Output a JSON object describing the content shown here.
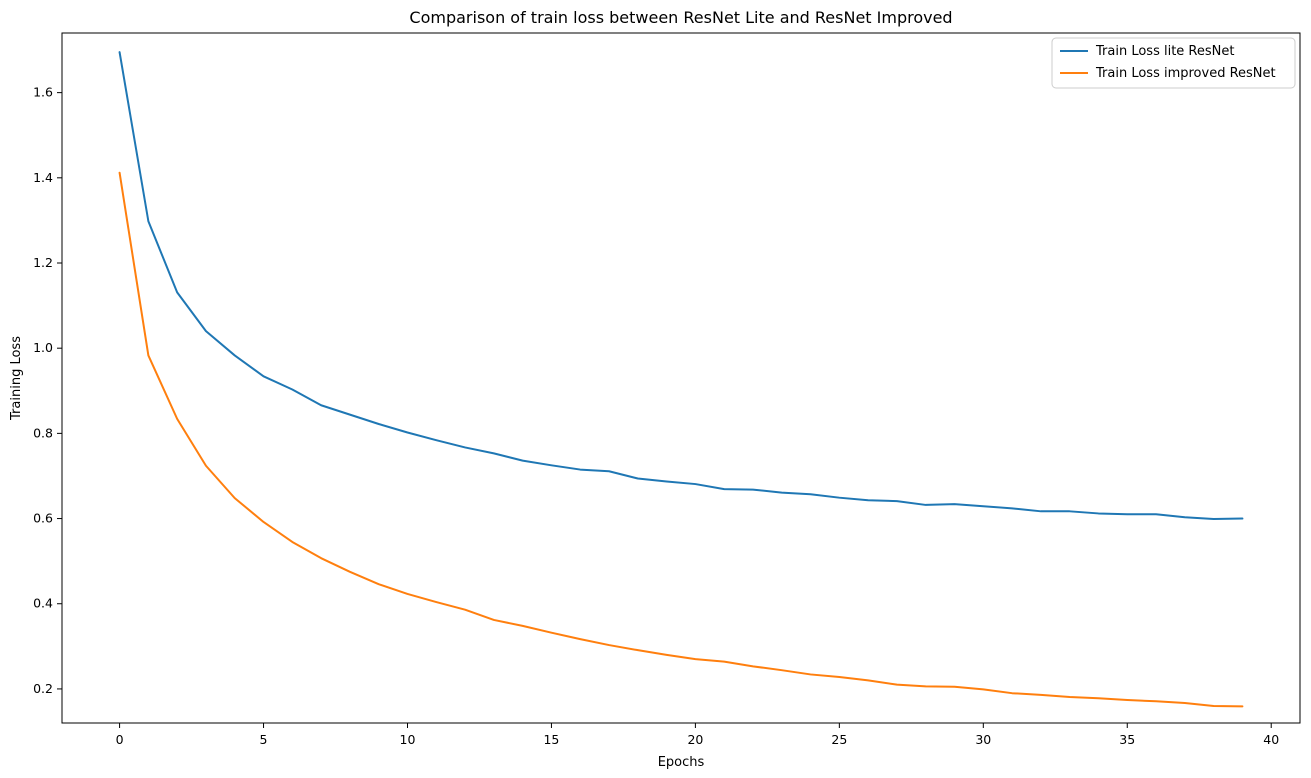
{
  "chart_data": {
    "type": "line",
    "title": "Comparison of train loss between ResNet Lite and ResNet Improved",
    "xlabel": "Epochs",
    "ylabel": "Training Loss",
    "xlim": [
      -2,
      41
    ],
    "ylim": [
      0.12,
      1.74
    ],
    "xticks": [
      0,
      5,
      10,
      15,
      20,
      25,
      30,
      35,
      40
    ],
    "yticks": [
      0.2,
      0.4,
      0.6,
      0.8,
      1.0,
      1.2,
      1.4,
      1.6
    ],
    "xtick_labels": [
      "0",
      "5",
      "10",
      "15",
      "20",
      "25",
      "30",
      "35",
      "40"
    ],
    "ytick_labels": [
      "0.2",
      "0.4",
      "0.6",
      "0.8",
      "1.0",
      "1.2",
      "1.4",
      "1.6"
    ],
    "grid": false,
    "legend_position": "top-right",
    "x": [
      0,
      1,
      2,
      3,
      4,
      5,
      6,
      7,
      8,
      9,
      10,
      11,
      12,
      13,
      14,
      15,
      16,
      17,
      18,
      19,
      20,
      21,
      22,
      23,
      24,
      25,
      26,
      27,
      28,
      29,
      30,
      31,
      32,
      33,
      34,
      35,
      36,
      37,
      38,
      39
    ],
    "series": [
      {
        "name": "Train Loss lite ResNet",
        "color": "#1f77b4",
        "values": [
          1.695,
          1.298,
          1.131,
          1.04,
          0.983,
          0.934,
          0.903,
          0.866,
          0.844,
          0.822,
          0.802,
          0.784,
          0.767,
          0.753,
          0.736,
          0.725,
          0.715,
          0.711,
          0.694,
          0.687,
          0.681,
          0.669,
          0.668,
          0.661,
          0.657,
          0.649,
          0.643,
          0.641,
          0.632,
          0.634,
          0.629,
          0.624,
          0.617,
          0.617,
          0.612,
          0.61,
          0.61,
          0.603,
          0.599,
          0.6
        ]
      },
      {
        "name": "Train Loss improved ResNet",
        "color": "#ff7f0e",
        "values": [
          1.412,
          0.983,
          0.834,
          0.724,
          0.648,
          0.592,
          0.545,
          0.507,
          0.475,
          0.446,
          0.423,
          0.404,
          0.386,
          0.362,
          0.348,
          0.332,
          0.317,
          0.303,
          0.291,
          0.28,
          0.27,
          0.264,
          0.253,
          0.244,
          0.234,
          0.228,
          0.22,
          0.21,
          0.206,
          0.205,
          0.199,
          0.19,
          0.186,
          0.181,
          0.178,
          0.174,
          0.171,
          0.167,
          0.16,
          0.159
        ]
      }
    ]
  }
}
